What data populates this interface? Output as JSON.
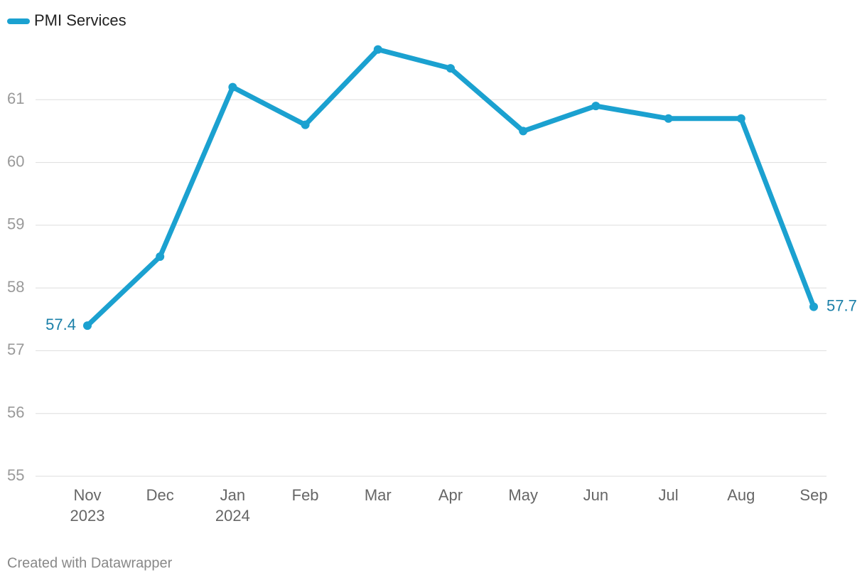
{
  "chart_data": {
    "type": "line",
    "categories": [
      "Nov 2023",
      "Dec",
      "Jan 2024",
      "Feb",
      "Mar",
      "Apr",
      "May",
      "Jun",
      "Jul",
      "Aug",
      "Sep"
    ],
    "series": [
      {
        "name": "PMI Services",
        "color": "#1ba1d0",
        "values": [
          57.4,
          58.5,
          61.2,
          60.6,
          61.8,
          61.5,
          60.5,
          60.9,
          60.7,
          60.7,
          57.7
        ]
      }
    ],
    "ylim": [
      55,
      62
    ],
    "yticks": [
      55,
      56,
      57,
      58,
      59,
      60,
      61
    ],
    "grid": true,
    "footer": "Created with Datawrapper"
  }
}
